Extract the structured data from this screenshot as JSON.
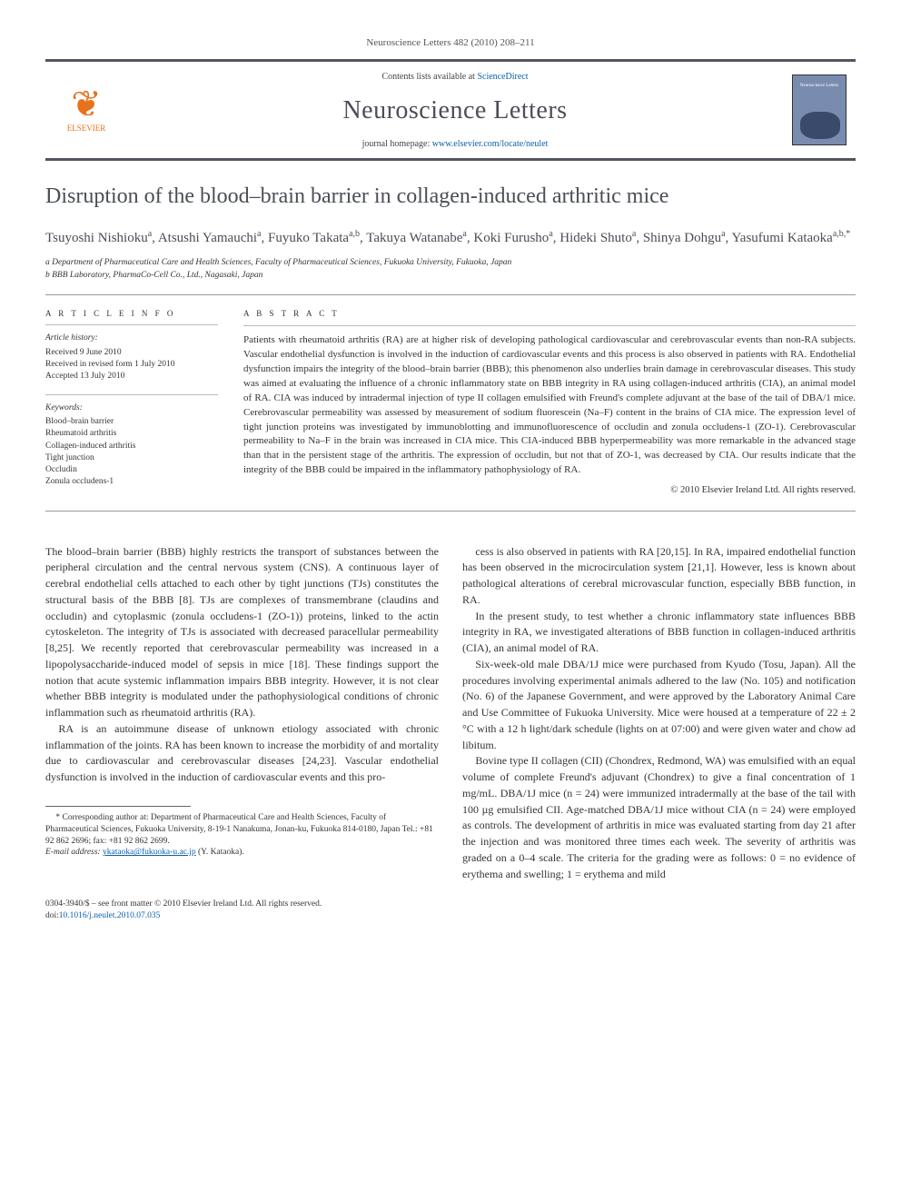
{
  "header": {
    "citation": "Neuroscience Letters 482 (2010) 208–211",
    "contents_prefix": "Contents lists available at ",
    "contents_link": "ScienceDirect",
    "journal_title": "Neuroscience Letters",
    "homepage_prefix": "journal homepage: ",
    "homepage_link": "www.elsevier.com/locate/neulet",
    "publisher_logo": "ELSEVIER",
    "cover_label": "Neuroscience Letters"
  },
  "article": {
    "title": "Disruption of the blood–brain barrier in collagen-induced arthritic mice",
    "authors_html": "Tsuyoshi Nishioku<sup>a</sup>, Atsushi Yamauchi<sup>a</sup>, Fuyuko Takata<sup>a,b</sup>, Takuya Watanabe<sup>a</sup>, Koki Furusho<sup>a</sup>, Hideki Shuto<sup>a</sup>, Shinya Dohgu<sup>a</sup>, Yasufumi Kataoka<sup>a,b,*</sup>",
    "affiliations": [
      "a Department of Pharmaceutical Care and Health Sciences, Faculty of Pharmaceutical Sciences, Fukuoka University, Fukuoka, Japan",
      "b BBB Laboratory, PharmaCo-Cell Co., Ltd., Nagasaki, Japan"
    ]
  },
  "info": {
    "heading": "A R T I C L E   I N F O",
    "history_label": "Article history:",
    "history": [
      "Received 9 June 2010",
      "Received in revised form 1 July 2010",
      "Accepted 13 July 2010"
    ],
    "keywords_label": "Keywords:",
    "keywords": [
      "Blood–brain barrier",
      "Rheumatoid arthritis",
      "Collagen-induced arthritis",
      "Tight junction",
      "Occludin",
      "Zonula occludens-1"
    ]
  },
  "abstract": {
    "heading": "A B S T R A C T",
    "text": "Patients with rheumatoid arthritis (RA) are at higher risk of developing pathological cardiovascular and cerebrovascular events than non-RA subjects. Vascular endothelial dysfunction is involved in the induction of cardiovascular events and this process is also observed in patients with RA. Endothelial dysfunction impairs the integrity of the blood–brain barrier (BBB); this phenomenon also underlies brain damage in cerebrovascular diseases. This study was aimed at evaluating the influence of a chronic inflammatory state on BBB integrity in RA using collagen-induced arthritis (CIA), an animal model of RA. CIA was induced by intradermal injection of type II collagen emulsified with Freund's complete adjuvant at the base of the tail of DBA/1 mice. Cerebrovascular permeability was assessed by measurement of sodium fluorescein (Na–F) content in the brains of CIA mice. The expression level of tight junction proteins was investigated by immunoblotting and immunofluorescence of occludin and zonula occludens-1 (ZO-1). Cerebrovascular permeability to Na–F in the brain was increased in CIA mice. This CIA-induced BBB hyperpermeability was more remarkable in the advanced stage than that in the persistent stage of the arthritis. The expression of occludin, but not that of ZO-1, was decreased by CIA. Our results indicate that the integrity of the BBB could be impaired in the inflammatory pathophysiology of RA.",
    "copyright": "© 2010 Elsevier Ireland Ltd. All rights reserved."
  },
  "body": {
    "p1": "The blood–brain barrier (BBB) highly restricts the transport of substances between the peripheral circulation and the central nervous system (CNS). A continuous layer of cerebral endothelial cells attached to each other by tight junctions (TJs) constitutes the structural basis of the BBB [8]. TJs are complexes of transmembrane (claudins and occludin) and cytoplasmic (zonula occludens-1 (ZO-1)) proteins, linked to the actin cytoskeleton. The integrity of TJs is associated with decreased paracellular permeability [8,25]. We recently reported that cerebrovascular permeability was increased in a lipopolysaccharide-induced model of sepsis in mice [18]. These findings support the notion that acute systemic inflammation impairs BBB integrity. However, it is not clear whether BBB integrity is modulated under the pathophysiological conditions of chronic inflammation such as rheumatoid arthritis (RA).",
    "p2": "RA is an autoimmune disease of unknown etiology associated with chronic inflammation of the joints. RA has been known to increase the morbidity of and mortality due to cardiovascular and cerebrovascular diseases [24,23]. Vascular endothelial dysfunction is involved in the induction of cardiovascular events and this pro-",
    "p3": "cess is also observed in patients with RA [20,15]. In RA, impaired endothelial function has been observed in the microcirculation system [21,1]. However, less is known about pathological alterations of cerebral microvascular function, especially BBB function, in RA.",
    "p4": "In the present study, to test whether a chronic inflammatory state influences BBB integrity in RA, we investigated alterations of BBB function in collagen-induced arthritis (CIA), an animal model of RA.",
    "p5": "Six-week-old male DBA/1J mice were purchased from Kyudo (Tosu, Japan). All the procedures involving experimental animals adhered to the law (No. 105) and notification (No. 6) of the Japanese Government, and were approved by the Laboratory Animal Care and Use Committee of Fukuoka University. Mice were housed at a temperature of 22 ± 2 °C with a 12 h light/dark schedule (lights on at 07:00) and were given water and chow ad libitum.",
    "p6": "Bovine type II collagen (CII) (Chondrex, Redmond, WA) was emulsified with an equal volume of complete Freund's adjuvant (Chondrex) to give a final concentration of 1 mg/mL. DBA/1J mice (n = 24) were immunized intradermally at the base of the tail with 100 µg emulsified CII. Age-matched DBA/1J mice without CIA (n = 24) were employed as controls. The development of arthritis in mice was evaluated starting from day 21 after the injection and was monitored three times each week. The severity of arthritis was graded on a 0–4 scale. The criteria for the grading were as follows: 0 = no evidence of erythema and swelling; 1 = erythema and mild"
  },
  "footnote": {
    "corresponding": "* Corresponding author at: Department of Pharmaceutical Care and Health Sciences, Faculty of Pharmaceutical Sciences, Fukuoka University, 8-19-1 Nanakuma, Jonan-ku, Fukuoka 814-0180, Japan Tel.: +81 92 862 2696; fax: +81 92 862 2699.",
    "email_label": "E-mail address: ",
    "email": "ykataoka@fukuoka-u.ac.jp",
    "email_suffix": " (Y. Kataoka)."
  },
  "footer": {
    "line1": "0304-3940/$ – see front matter © 2010 Elsevier Ireland Ltd. All rights reserved.",
    "doi_prefix": "doi:",
    "doi": "10.1016/j.neulet.2010.07.035"
  },
  "colors": {
    "link": "#0b60a9",
    "brand_orange": "#e9711c",
    "header_gray": "#4a4e56",
    "rule_gray": "#525560"
  },
  "refs": {
    "r8": "[8]",
    "r8_25": "[8,25]",
    "r18": "[18]",
    "r24_23": "[24,23]",
    "r20_15": "[20,15]",
    "r21_1": "[21,1]"
  }
}
